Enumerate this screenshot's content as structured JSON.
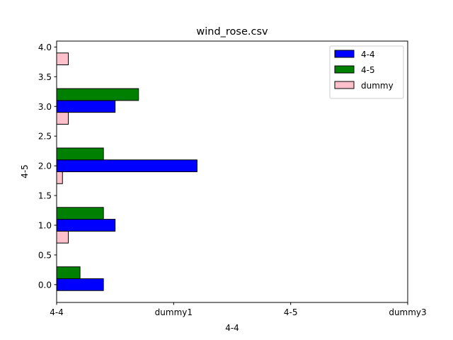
{
  "chart_data": {
    "type": "bar",
    "orientation": "horizontal",
    "title": "wind_rose.csv",
    "xlabel": "4-4",
    "ylabel": "4-5",
    "x_tick_labels": [
      "4-4",
      "dummy1",
      "4-5",
      "dummy3"
    ],
    "y_ticks": [
      "0.0",
      "0.5",
      "1.0",
      "1.5",
      "2.0",
      "2.5",
      "3.0",
      "3.5",
      "4.0"
    ],
    "xlim": [
      0,
      3
    ],
    "ylim": [
      -0.3,
      4.1
    ],
    "grid": false,
    "legend_position": "top-right",
    "series": [
      {
        "name": "4-4",
        "color": "#0000ff",
        "points": [
          {
            "y": 0,
            "value": 0.4
          },
          {
            "y": 1,
            "value": 0.5
          },
          {
            "y": 2,
            "value": 1.2
          },
          {
            "y": 3,
            "value": 0.5
          }
        ]
      },
      {
        "name": "4-5",
        "color": "#008000",
        "points": [
          {
            "y": 0,
            "value": 0.2
          },
          {
            "y": 1,
            "value": 0.4
          },
          {
            "y": 2,
            "value": 0.4
          },
          {
            "y": 3,
            "value": 0.7
          }
        ]
      },
      {
        "name": "dummy",
        "color": "#ffc0cb",
        "points": [
          {
            "y": 1,
            "value": 0.1
          },
          {
            "y": 2,
            "value": 0.05
          },
          {
            "y": 3,
            "value": 0.1
          },
          {
            "y": 4,
            "value": 0.1
          }
        ]
      }
    ]
  }
}
